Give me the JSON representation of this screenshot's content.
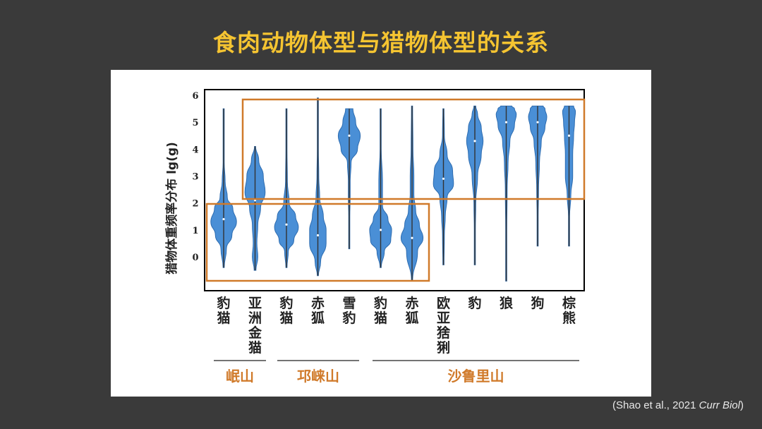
{
  "slide": {
    "title": "食肉动物体型与猎物体型的关系"
  },
  "citation": {
    "prefix": "(Shao et al., 2021 ",
    "journal": "Curr Biol",
    "suffix": ")"
  },
  "colors": {
    "background": "#3a3a3a",
    "title": "#f5c431",
    "violin_fill": "#4a8fd6",
    "violin_stroke": "#2d6cb0",
    "highlight_box": "#d07a2a",
    "mountain_label": "#d07a2a"
  },
  "chart_data": {
    "type": "violin",
    "ylabel": "猎物体重频率分布 lg(g)",
    "ylim": [
      -0.9,
      6
    ],
    "yticks": [
      "6",
      "5",
      "4",
      "3",
      "2",
      "1",
      "0"
    ],
    "ytick_values": [
      6,
      5,
      4,
      3,
      2,
      1,
      0
    ],
    "categories": [
      {
        "name": "豹猫",
        "min": -0.4,
        "max": 5.5,
        "median": 1.4,
        "profile": [
          [
            -0.4,
            0.02
          ],
          [
            0.3,
            0.15
          ],
          [
            0.8,
            0.45
          ],
          [
            1.3,
            0.7
          ],
          [
            1.8,
            0.5
          ],
          [
            2.2,
            0.2
          ],
          [
            2.8,
            0.08
          ],
          [
            3.5,
            0.03
          ],
          [
            5.5,
            0.01
          ]
        ]
      },
      {
        "name": "亚洲金猫",
        "min": -0.5,
        "max": 4.1,
        "median": 2.1,
        "profile": [
          [
            -0.5,
            0.05
          ],
          [
            0,
            0.15
          ],
          [
            0.5,
            0.1
          ],
          [
            1.2,
            0.15
          ],
          [
            1.8,
            0.3
          ],
          [
            2.4,
            0.55
          ],
          [
            3.0,
            0.45
          ],
          [
            3.6,
            0.2
          ],
          [
            4.1,
            0.02
          ]
        ]
      },
      {
        "name": "豹猫",
        "min": -0.4,
        "max": 5.5,
        "median": 1.2,
        "profile": [
          [
            -0.4,
            0.02
          ],
          [
            0.2,
            0.1
          ],
          [
            0.6,
            0.4
          ],
          [
            1.1,
            0.65
          ],
          [
            1.5,
            0.5
          ],
          [
            2.0,
            0.15
          ],
          [
            2.8,
            0.05
          ],
          [
            4.0,
            0.02
          ],
          [
            5.5,
            0.01
          ]
        ]
      },
      {
        "name": "赤狐",
        "min": -0.7,
        "max": 5.9,
        "median": 0.8,
        "profile": [
          [
            -0.7,
            0.02
          ],
          [
            -0.2,
            0.15
          ],
          [
            0.5,
            0.45
          ],
          [
            1.0,
            0.45
          ],
          [
            1.5,
            0.3
          ],
          [
            2.2,
            0.1
          ],
          [
            3.0,
            0.05
          ],
          [
            4.0,
            0.03
          ],
          [
            5.9,
            0.01
          ]
        ]
      },
      {
        "name": "雪豹",
        "min": 0.3,
        "max": 5.5,
        "median": 4.5,
        "profile": [
          [
            0.3,
            0.01
          ],
          [
            1.5,
            0.02
          ],
          [
            2.2,
            0.05
          ],
          [
            2.8,
            0.05
          ],
          [
            3.5,
            0.1
          ],
          [
            4.0,
            0.45
          ],
          [
            4.5,
            0.6
          ],
          [
            5.0,
            0.35
          ],
          [
            5.5,
            0.2
          ]
        ]
      },
      {
        "name": "豹猫",
        "min": -0.4,
        "max": 5.5,
        "median": 1.0,
        "profile": [
          [
            -0.4,
            0.02
          ],
          [
            0.2,
            0.2
          ],
          [
            0.6,
            0.55
          ],
          [
            1.0,
            0.6
          ],
          [
            1.4,
            0.4
          ],
          [
            1.9,
            0.1
          ],
          [
            2.8,
            0.1
          ],
          [
            4.0,
            0.02
          ],
          [
            5.5,
            0.01
          ]
        ]
      },
      {
        "name": "赤狐",
        "min": -0.9,
        "max": 5.6,
        "median": 0.7,
        "profile": [
          [
            -0.9,
            0.02
          ],
          [
            0.2,
            0.3
          ],
          [
            0.7,
            0.6
          ],
          [
            1.2,
            0.4
          ],
          [
            1.7,
            0.2
          ],
          [
            2.3,
            0.1
          ],
          [
            3.0,
            0.1
          ],
          [
            4.0,
            0.05
          ],
          [
            5.6,
            0.01
          ]
        ]
      },
      {
        "name": "欧亚猞猁",
        "min": -0.3,
        "max": 5.5,
        "median": 2.9,
        "profile": [
          [
            -0.3,
            0.01
          ],
          [
            0.8,
            0.05
          ],
          [
            1.5,
            0.1
          ],
          [
            2.2,
            0.2
          ],
          [
            2.7,
            0.55
          ],
          [
            3.2,
            0.5
          ],
          [
            3.8,
            0.2
          ],
          [
            4.5,
            0.05
          ],
          [
            5.5,
            0.01
          ]
        ]
      },
      {
        "name": "豹",
        "min": -0.3,
        "max": 5.6,
        "median": 4.3,
        "profile": [
          [
            -0.3,
            0.01
          ],
          [
            1.0,
            0.02
          ],
          [
            2.0,
            0.05
          ],
          [
            3.0,
            0.15
          ],
          [
            3.8,
            0.35
          ],
          [
            4.3,
            0.45
          ],
          [
            4.8,
            0.35
          ],
          [
            5.3,
            0.15
          ],
          [
            5.6,
            0.05
          ]
        ]
      },
      {
        "name": "狼",
        "min": -0.9,
        "max": 5.6,
        "median": 5.0,
        "profile": [
          [
            -0.9,
            0.01
          ],
          [
            1.0,
            0.02
          ],
          [
            2.5,
            0.05
          ],
          [
            3.5,
            0.1
          ],
          [
            4.3,
            0.2
          ],
          [
            4.9,
            0.45
          ],
          [
            5.3,
            0.55
          ],
          [
            5.5,
            0.45
          ],
          [
            5.6,
            0.3
          ]
        ]
      },
      {
        "name": "狗",
        "min": 0.4,
        "max": 5.6,
        "median": 5.0,
        "profile": [
          [
            0.4,
            0.01
          ],
          [
            1.5,
            0.02
          ],
          [
            2.5,
            0.05
          ],
          [
            3.5,
            0.1
          ],
          [
            4.3,
            0.2
          ],
          [
            4.8,
            0.4
          ],
          [
            5.2,
            0.5
          ],
          [
            5.5,
            0.4
          ],
          [
            5.6,
            0.3
          ]
        ]
      },
      {
        "name": "棕熊",
        "min": 0.4,
        "max": 5.6,
        "median": 4.5,
        "profile": [
          [
            0.4,
            0.01
          ],
          [
            1.5,
            0.02
          ],
          [
            2.3,
            0.1
          ],
          [
            3.0,
            0.2
          ],
          [
            3.8,
            0.2
          ],
          [
            4.5,
            0.25
          ],
          [
            5.0,
            0.3
          ],
          [
            5.4,
            0.35
          ],
          [
            5.6,
            0.25
          ]
        ]
      }
    ],
    "groups": [
      {
        "name": "岷山",
        "members": [
          0,
          1
        ]
      },
      {
        "name": "邛崃山",
        "members": [
          2,
          3,
          4
        ]
      },
      {
        "name": "沙鲁里山",
        "members": [
          5,
          6,
          7,
          8,
          9,
          10,
          11
        ]
      }
    ]
  }
}
